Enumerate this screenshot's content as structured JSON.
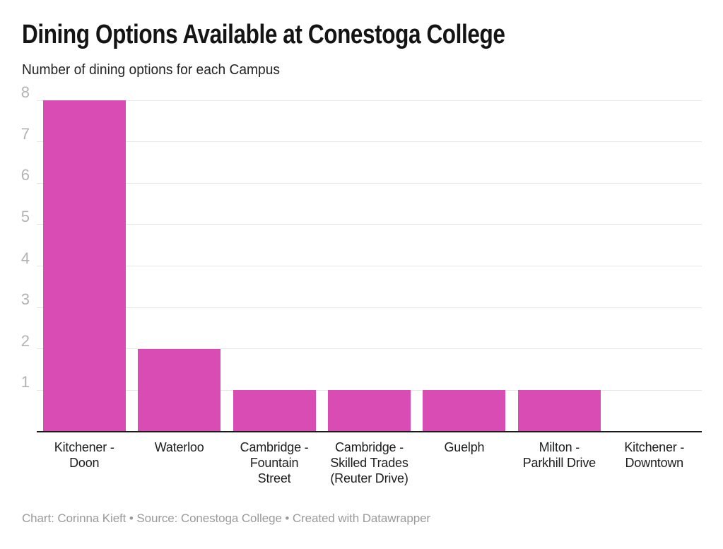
{
  "header": {
    "title": "Dining Options Available at Conestoga College",
    "subtitle": "Number of dining options for each Campus"
  },
  "footer": {
    "byline": "Chart: Corinna Kieft • Source: Conestoga College • Created with Datawrapper"
  },
  "colors": {
    "background": "#ffffff",
    "bar": "#d94cb4",
    "grid": "#e7e7e7",
    "axis": "#1a1a1a",
    "y_tick_text": "#b3b3b3",
    "x_tick_text": "#1d1d1d",
    "title_text": "#141414",
    "subtitle_text": "#242424",
    "footer_text": "#9a9a9a"
  },
  "chart_data": {
    "type": "bar",
    "title": "Dining Options Available at Conestoga College",
    "subtitle": "Number of dining options for each Campus",
    "categories": [
      "Kitchener - Doon",
      "Waterloo",
      "Cambridge - Fountain Street",
      "Cambridge - Skilled Trades (Reuter Drive)",
      "Guelph",
      "Milton - Parkhill Drive",
      "Kitchener - Downtown"
    ],
    "values": [
      8,
      2,
      1,
      1,
      1,
      1,
      0
    ],
    "x_tick_lines": [
      [
        "Kitchener -",
        "Doon"
      ],
      [
        "Waterloo"
      ],
      [
        "Cambridge -",
        "Fountain",
        "Street"
      ],
      [
        "Cambridge -",
        "Skilled Trades",
        "(Reuter Drive)"
      ],
      [
        "Guelph"
      ],
      [
        "Milton -",
        "Parkhill Drive"
      ],
      [
        "Kitchener -",
        "Downtown"
      ]
    ],
    "xlabel": "",
    "ylabel": "",
    "ylim": [
      0,
      8
    ],
    "y_ticks": [
      1,
      2,
      3,
      4,
      5,
      6,
      7,
      8
    ],
    "grid": true,
    "legend": "none"
  }
}
